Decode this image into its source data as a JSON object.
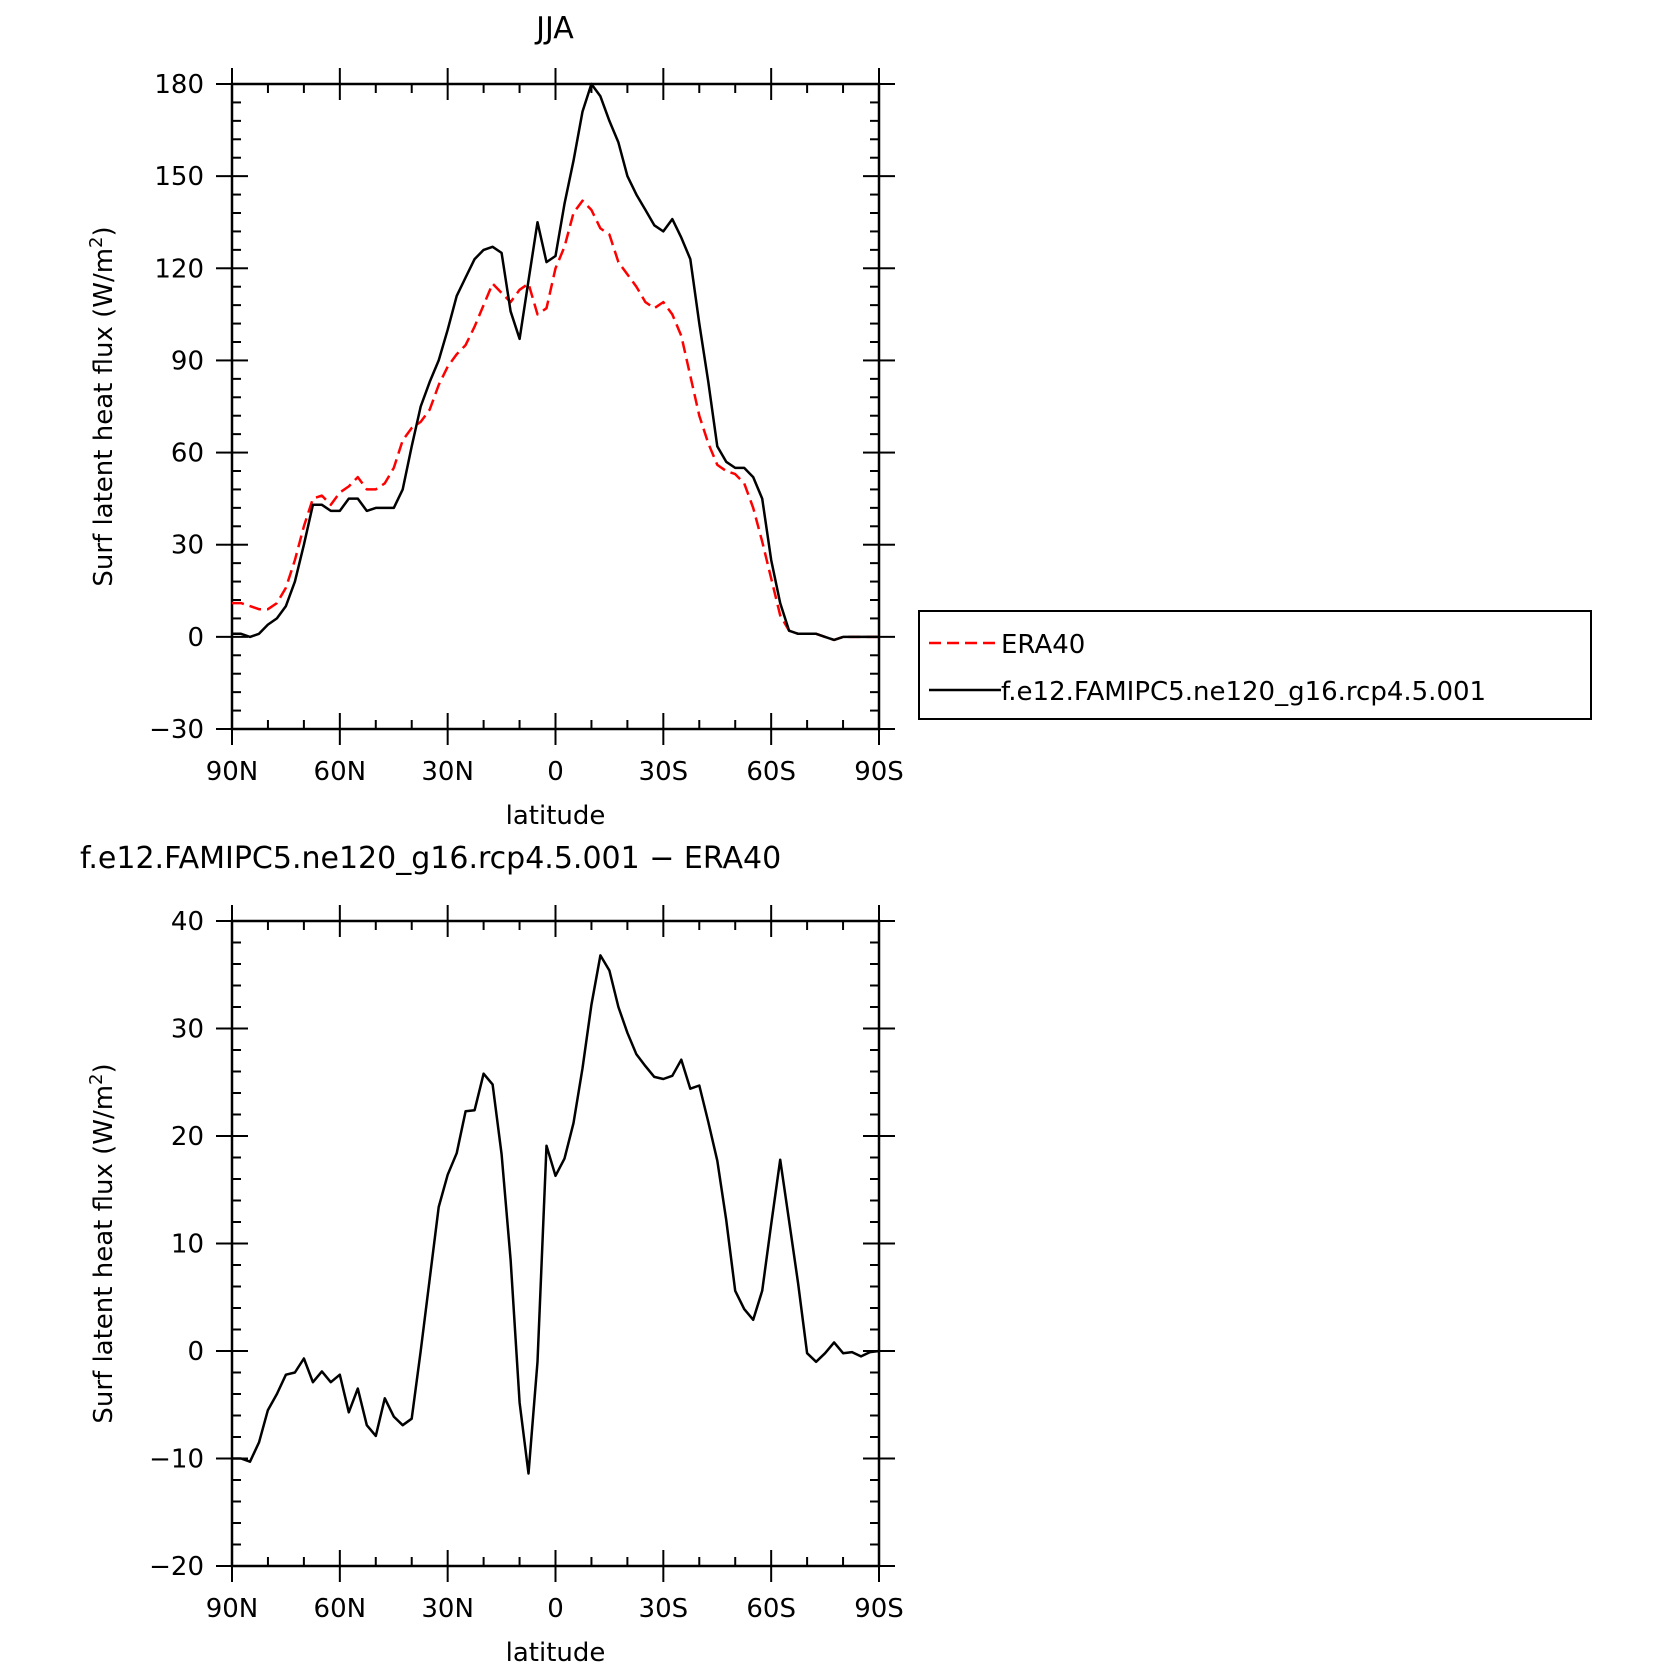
{
  "chart_data": [
    {
      "type": "line",
      "title": "JJA",
      "xlabel": "latitude",
      "ylabel": "Surf latent heat flux (W/m",
      "ylabel_sup": "2",
      "ylabel_close": ")",
      "xlim": [
        90,
        -90
      ],
      "ylim": [
        -30,
        180
      ],
      "xticks": [
        90,
        60,
        30,
        0,
        -30,
        -60,
        -90
      ],
      "xticklabels": [
        "90N",
        "60N",
        "30N",
        "0",
        "30S",
        "60S",
        "90S"
      ],
      "yticks": [
        -30,
        0,
        30,
        60,
        90,
        120,
        150,
        180
      ],
      "yticklabels": [
        "−30",
        "0",
        "30",
        "60",
        "90",
        "120",
        "150",
        "180"
      ],
      "legend": {
        "placement": "right-outside",
        "entries": [
          "ERA40",
          "f.e12.FAMIPC5.ne120_g16.rcp4.5.001"
        ]
      },
      "series": [
        {
          "name": "ERA40",
          "color": "#ff0000",
          "dash": "dashed",
          "x": [
            90,
            87.5,
            85,
            82.5,
            80,
            77.5,
            75,
            72.5,
            70,
            67.5,
            65,
            62.5,
            60,
            57.5,
            55,
            52.5,
            50,
            47.5,
            45,
            42.5,
            40,
            37.5,
            35,
            32.5,
            30,
            27.5,
            25,
            22.5,
            20,
            17.5,
            15,
            12.5,
            10,
            7.5,
            5,
            2.5,
            0,
            -2.5,
            -5,
            -7.5,
            -10,
            -12.5,
            -15,
            -17.5,
            -20,
            -22.5,
            -25,
            -27.5,
            -30,
            -32.5,
            -35,
            -37.5,
            -40,
            -42.5,
            -45,
            -47.5,
            -50,
            -52.5,
            -55,
            -57.5,
            -60,
            -62.5,
            -65,
            -67.5,
            -70,
            -72.5,
            -75,
            -77.5,
            -80,
            -82.5,
            -85,
            -87.5,
            -90
          ],
          "y": [
            11,
            11,
            10,
            9,
            9,
            11,
            16,
            25,
            36,
            45,
            46,
            43,
            47,
            49,
            52,
            48,
            48,
            50,
            55,
            64,
            68,
            70,
            74,
            82,
            88,
            92,
            95,
            101,
            108,
            115,
            112,
            109,
            113,
            115,
            105,
            107,
            120,
            127,
            138,
            142,
            139,
            133,
            131,
            122,
            118,
            114,
            109,
            107,
            109,
            105,
            98,
            85,
            72,
            63,
            56,
            54,
            53,
            50,
            42,
            31,
            19,
            7,
            2,
            1,
            1,
            1,
            0,
            -1,
            0,
            0,
            0,
            0,
            0
          ]
        },
        {
          "name": "f.e12.FAMIPC5.ne120_g16.rcp4.5.001",
          "color": "#000000",
          "dash": "solid",
          "x": [
            90,
            87.5,
            85,
            82.5,
            80,
            77.5,
            75,
            72.5,
            70,
            67.5,
            65,
            62.5,
            60,
            57.5,
            55,
            52.5,
            50,
            47.5,
            45,
            42.5,
            40,
            37.5,
            35,
            32.5,
            30,
            27.5,
            25,
            22.5,
            20,
            17.5,
            15,
            12.5,
            10,
            7.5,
            5,
            2.5,
            0,
            -2.5,
            -5,
            -7.5,
            -10,
            -12.5,
            -15,
            -17.5,
            -20,
            -22.5,
            -25,
            -27.5,
            -30,
            -32.5,
            -35,
            -37.5,
            -40,
            -42.5,
            -45,
            -47.5,
            -50,
            -52.5,
            -55,
            -57.5,
            -60,
            -62.5,
            -65,
            -67.5,
            -70,
            -72.5,
            -75,
            -77.5,
            -80,
            -82.5,
            -85,
            -87.5,
            -90
          ],
          "y": [
            1,
            1,
            0,
            1,
            4,
            6,
            10,
            18,
            30,
            43,
            43,
            41,
            41,
            45,
            45,
            41,
            42,
            42,
            42,
            48,
            62,
            75,
            83,
            90,
            100,
            111,
            117,
            123,
            126,
            127,
            125,
            106,
            97,
            116,
            135,
            122,
            124,
            141,
            155,
            171,
            180,
            176,
            168,
            161,
            150,
            144,
            139,
            134,
            132,
            136,
            130,
            123,
            102,
            83,
            62,
            57,
            55,
            55,
            52,
            45,
            25,
            11,
            2,
            1,
            1,
            1,
            0,
            -1,
            0,
            0,
            0,
            0,
            0
          ]
        }
      ]
    },
    {
      "type": "line",
      "title": "f.e12.FAMIPC5.ne120_g16.rcp4.5.001 − ERA40",
      "xlabel": "latitude",
      "ylabel": "Surf latent heat flux (W/m",
      "ylabel_sup": "2",
      "ylabel_close": ")",
      "xlim": [
        90,
        -90
      ],
      "ylim": [
        -20,
        40
      ],
      "xticks": [
        90,
        60,
        30,
        0,
        -30,
        -60,
        -90
      ],
      "xticklabels": [
        "90N",
        "60N",
        "30N",
        "0",
        "30S",
        "60S",
        "90S"
      ],
      "yticks": [
        -20,
        -10,
        0,
        10,
        20,
        30,
        40
      ],
      "yticklabels": [
        "−20",
        "−10",
        "0",
        "10",
        "20",
        "30",
        "40"
      ],
      "series": [
        {
          "color": "#000000",
          "dash": "solid",
          "x": [
            90,
            87.5,
            85,
            82.5,
            80,
            77.5,
            75,
            72.5,
            70,
            67.5,
            65,
            62.5,
            60,
            57.5,
            55,
            52.5,
            50,
            47.5,
            45,
            42.5,
            40,
            37.5,
            35,
            32.5,
            30,
            27.5,
            25,
            22.5,
            20,
            17.5,
            15,
            12.5,
            10,
            7.5,
            5,
            2.5,
            0,
            -2.5,
            -5,
            -7.5,
            -10,
            -12.5,
            -15,
            -17.5,
            -20,
            -22.5,
            -25,
            -27.5,
            -30,
            -32.5,
            -35,
            -37.5,
            -40,
            -42.5,
            -45,
            -47.5,
            -50,
            -52.5,
            -55,
            -57.5,
            -60,
            -62.5,
            -65,
            -67.5,
            -70,
            -72.5,
            -75,
            -77.5,
            -80,
            -82.5,
            -85,
            -87.5,
            -90
          ],
          "y": [
            -10,
            -10,
            -10.3,
            -8.5,
            -5.5,
            -4,
            -2.2,
            -2,
            -0.7,
            -2.9,
            -1.9,
            -2.9,
            -2.2,
            -5.7,
            -3.5,
            -6.9,
            -7.9,
            -4.4,
            -6.1,
            -6.9,
            -6.3,
            0,
            6.7,
            13.4,
            16.4,
            18.4,
            22.3,
            22.4,
            25.8,
            24.8,
            18.3,
            8.5,
            -4.8,
            -11.4,
            -1,
            19.1,
            16.3,
            17.9,
            21.2,
            26.3,
            32.2,
            36.8,
            35.4,
            32,
            29.6,
            27.6,
            26.5,
            25.5,
            25.3,
            25.6,
            27.1,
            24.4,
            24.7,
            21.3,
            17.7,
            12.2,
            5.6,
            3.9,
            2.9,
            5.6,
            11.8,
            17.8,
            12.1,
            6.3,
            -0.2,
            -1,
            -0.2,
            0.8,
            -0.2,
            -0.1,
            -0.5,
            -0.1,
            0
          ]
        }
      ]
    }
  ]
}
